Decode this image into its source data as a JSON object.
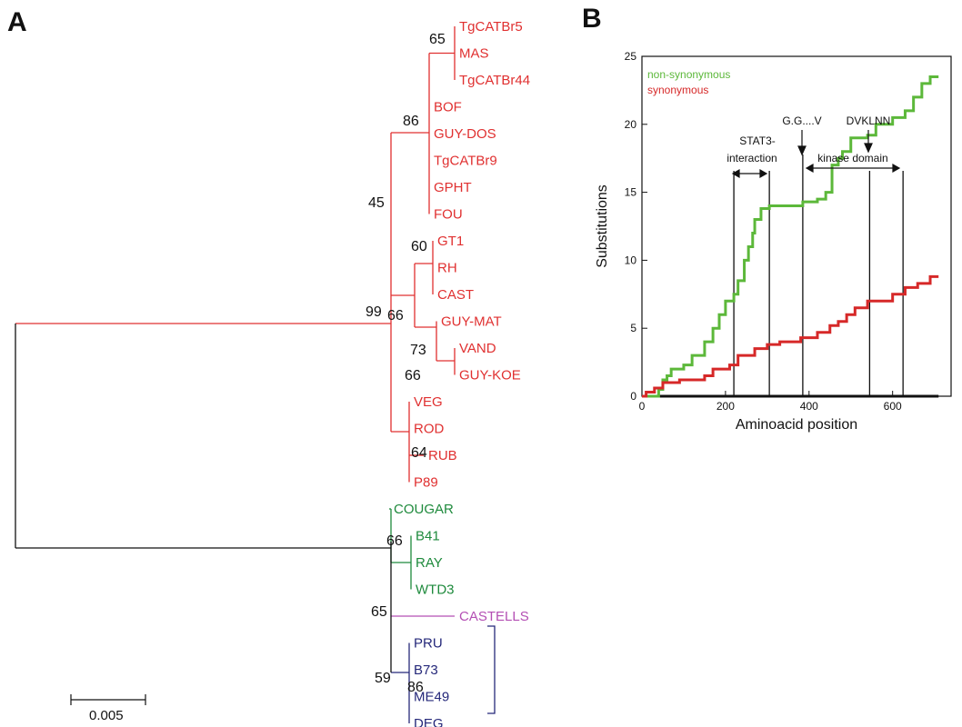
{
  "panels": {
    "a": "A",
    "b": "B"
  },
  "tree": {
    "leaves": [
      {
        "name": "TgCATBr5",
        "color": "#e03030"
      },
      {
        "name": "MAS",
        "color": "#e03030"
      },
      {
        "name": "TgCATBr44",
        "color": "#e03030"
      },
      {
        "name": "BOF",
        "color": "#e03030"
      },
      {
        "name": "GUY-DOS",
        "color": "#e03030"
      },
      {
        "name": "TgCATBr9",
        "color": "#e03030"
      },
      {
        "name": "GPHT",
        "color": "#e03030"
      },
      {
        "name": "FOU",
        "color": "#e03030"
      },
      {
        "name": "GT1",
        "color": "#e03030"
      },
      {
        "name": "RH",
        "color": "#e03030"
      },
      {
        "name": "CAST",
        "color": "#e03030"
      },
      {
        "name": "GUY-MAT",
        "color": "#e03030"
      },
      {
        "name": "VAND",
        "color": "#e03030"
      },
      {
        "name": "GUY-KOE",
        "color": "#e03030"
      },
      {
        "name": "VEG",
        "color": "#e03030"
      },
      {
        "name": "ROD",
        "color": "#e03030"
      },
      {
        "name": "RUB",
        "color": "#e03030"
      },
      {
        "name": "P89",
        "color": "#e03030"
      },
      {
        "name": "COUGAR",
        "color": "#1e8a3c"
      },
      {
        "name": "B41",
        "color": "#1e8a3c"
      },
      {
        "name": "RAY",
        "color": "#1e8a3c"
      },
      {
        "name": "WTD3",
        "color": "#1e8a3c"
      },
      {
        "name": "CASTELLS",
        "color": "#b44fb4"
      },
      {
        "name": "PRU",
        "color": "#25287a"
      },
      {
        "name": "B73",
        "color": "#25287a"
      },
      {
        "name": "ME49",
        "color": "#25287a"
      },
      {
        "name": "DEG",
        "color": "#25287a"
      }
    ],
    "bootstrap": [
      "65",
      "86",
      "45",
      "60",
      "99",
      "66",
      "73",
      "66",
      "64",
      "66",
      "65",
      "59",
      "86"
    ],
    "scale_label": "0.005",
    "colors": {
      "red": "#e03030",
      "green": "#1e8a3c",
      "purple": "#b44fb4",
      "blue": "#25287a",
      "root": "#111111"
    }
  },
  "chart_data": {
    "type": "line",
    "xlabel": "Aminoacid position",
    "ylabel": "Substitutions",
    "xlim": [
      0,
      740
    ],
    "ylim": [
      0,
      25
    ],
    "xticks": [
      0,
      200,
      400,
      600
    ],
    "yticks": [
      0,
      5,
      10,
      15,
      20,
      25
    ],
    "legend_position": "top-left",
    "series": [
      {
        "name": "non-synonymous",
        "color": "#5cb83a",
        "points": [
          [
            0,
            0
          ],
          [
            40,
            0.5
          ],
          [
            50,
            1.2
          ],
          [
            60,
            1.5
          ],
          [
            70,
            2
          ],
          [
            100,
            2.3
          ],
          [
            120,
            3
          ],
          [
            150,
            4
          ],
          [
            170,
            5
          ],
          [
            185,
            6
          ],
          [
            200,
            7
          ],
          [
            220,
            7.5
          ],
          [
            230,
            8.5
          ],
          [
            245,
            10
          ],
          [
            255,
            11
          ],
          [
            265,
            12
          ],
          [
            270,
            13
          ],
          [
            285,
            13.8
          ],
          [
            305,
            14
          ],
          [
            360,
            14
          ],
          [
            385,
            14.3
          ],
          [
            420,
            14.5
          ],
          [
            440,
            15
          ],
          [
            455,
            17
          ],
          [
            470,
            17.5
          ],
          [
            480,
            18
          ],
          [
            500,
            19
          ],
          [
            540,
            19.2
          ],
          [
            560,
            20
          ],
          [
            600,
            20.5
          ],
          [
            630,
            21
          ],
          [
            650,
            22
          ],
          [
            670,
            23
          ],
          [
            690,
            23.5
          ],
          [
            710,
            23.5
          ]
        ]
      },
      {
        "name": "synonymous",
        "color": "#d62828",
        "points": [
          [
            0,
            0
          ],
          [
            10,
            0.3
          ],
          [
            30,
            0.6
          ],
          [
            50,
            1
          ],
          [
            90,
            1.2
          ],
          [
            150,
            1.5
          ],
          [
            170,
            2
          ],
          [
            210,
            2.3
          ],
          [
            230,
            3
          ],
          [
            270,
            3.5
          ],
          [
            300,
            3.8
          ],
          [
            330,
            4
          ],
          [
            380,
            4.3
          ],
          [
            420,
            4.7
          ],
          [
            450,
            5.2
          ],
          [
            470,
            5.5
          ],
          [
            490,
            6
          ],
          [
            510,
            6.5
          ],
          [
            540,
            7
          ],
          [
            570,
            7
          ],
          [
            600,
            7.5
          ],
          [
            630,
            8
          ],
          [
            660,
            8.3
          ],
          [
            690,
            8.8
          ],
          [
            710,
            8.8
          ]
        ]
      }
    ],
    "vlines": [
      220,
      305,
      385,
      545,
      625
    ],
    "annotations": {
      "stat3_line1": "STAT3-",
      "stat3_line2": "interaction",
      "ggv": "G.G....V",
      "dvklnn": "DVKLNN",
      "kinase": "kinase domain"
    }
  }
}
